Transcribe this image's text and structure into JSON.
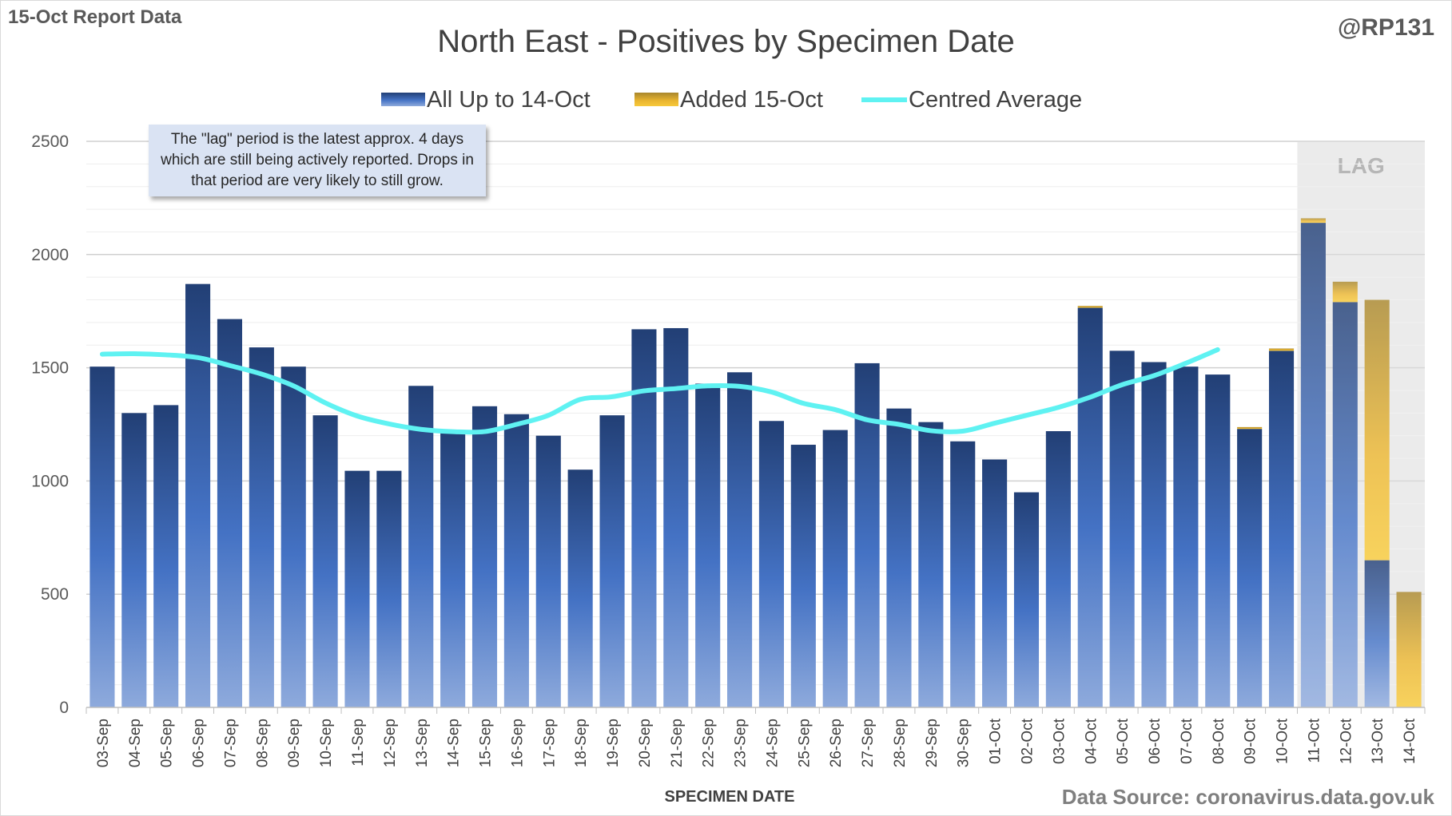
{
  "header": {
    "report_label": "15-Oct Report Data",
    "handle": "@RP131",
    "title": "North East - Positives by Specimen Date",
    "source": "Data Source: coronavirus.data.gov.uk"
  },
  "note": "The \"lag\" period is the latest approx. 4 days which are still being actively reported. Drops in that period are very likely to still grow.",
  "colors": {
    "bar_dark": "#2e4d87",
    "bar_light": "#8faadc",
    "added_dark": "#b8902a",
    "added_light": "#f5c431",
    "average": "#5ff2f2",
    "lag_bg": "#e7e7e7"
  },
  "chart_data": {
    "type": "bar",
    "title": "North East - Positives by Specimen Date",
    "xlabel": "SPECIMEN DATE",
    "ylabel": "",
    "ylim": [
      0,
      2500
    ],
    "yticks": [
      0,
      500,
      1000,
      1500,
      2000,
      2500
    ],
    "grid": true,
    "legend_position": "top-center",
    "lag_label": "LAG",
    "lag_categories": [
      "11-Oct",
      "12-Oct",
      "13-Oct",
      "14-Oct"
    ],
    "categories": [
      "03-Sep",
      "04-Sep",
      "05-Sep",
      "06-Sep",
      "07-Sep",
      "08-Sep",
      "09-Sep",
      "10-Sep",
      "11-Sep",
      "12-Sep",
      "13-Sep",
      "14-Sep",
      "15-Sep",
      "16-Sep",
      "17-Sep",
      "18-Sep",
      "19-Sep",
      "20-Sep",
      "21-Sep",
      "22-Sep",
      "23-Sep",
      "24-Sep",
      "25-Sep",
      "26-Sep",
      "27-Sep",
      "28-Sep",
      "29-Sep",
      "30-Sep",
      "01-Oct",
      "02-Oct",
      "03-Oct",
      "04-Oct",
      "05-Oct",
      "06-Oct",
      "07-Oct",
      "08-Oct",
      "09-Oct",
      "10-Oct",
      "11-Oct",
      "12-Oct",
      "13-Oct",
      "14-Oct"
    ],
    "series": [
      {
        "name": "All Up to 14-Oct",
        "kind": "bar",
        "values": [
          1505,
          1300,
          1335,
          1870,
          1715,
          1590,
          1505,
          1290,
          1045,
          1045,
          1420,
          1215,
          1330,
          1295,
          1200,
          1050,
          1290,
          1670,
          1675,
          1430,
          1480,
          1265,
          1160,
          1225,
          1520,
          1320,
          1260,
          1175,
          1095,
          950,
          1220,
          1765,
          1575,
          1525,
          1505,
          1470,
          1230,
          1575,
          2140,
          1790,
          650,
          0
        ]
      },
      {
        "name": "Added 15-Oct",
        "kind": "stacked-bar",
        "values": [
          0,
          0,
          0,
          0,
          0,
          0,
          0,
          0,
          0,
          0,
          0,
          0,
          0,
          0,
          0,
          0,
          0,
          0,
          0,
          0,
          0,
          0,
          0,
          0,
          0,
          0,
          0,
          0,
          0,
          0,
          0,
          8,
          0,
          0,
          0,
          0,
          8,
          10,
          20,
          90,
          1150,
          510
        ]
      },
      {
        "name": "Centred Average",
        "kind": "line",
        "values": [
          1560,
          1562,
          1557,
          1545,
          1510,
          1472,
          1420,
          1345,
          1287,
          1252,
          1228,
          1218,
          1218,
          1250,
          1290,
          1360,
          1372,
          1398,
          1408,
          1420,
          1418,
          1393,
          1343,
          1315,
          1270,
          1250,
          1222,
          1220,
          1255,
          1290,
          1325,
          1370,
          1425,
          1465,
          1520,
          1580,
          null,
          null,
          null,
          null,
          null,
          null
        ]
      }
    ]
  }
}
